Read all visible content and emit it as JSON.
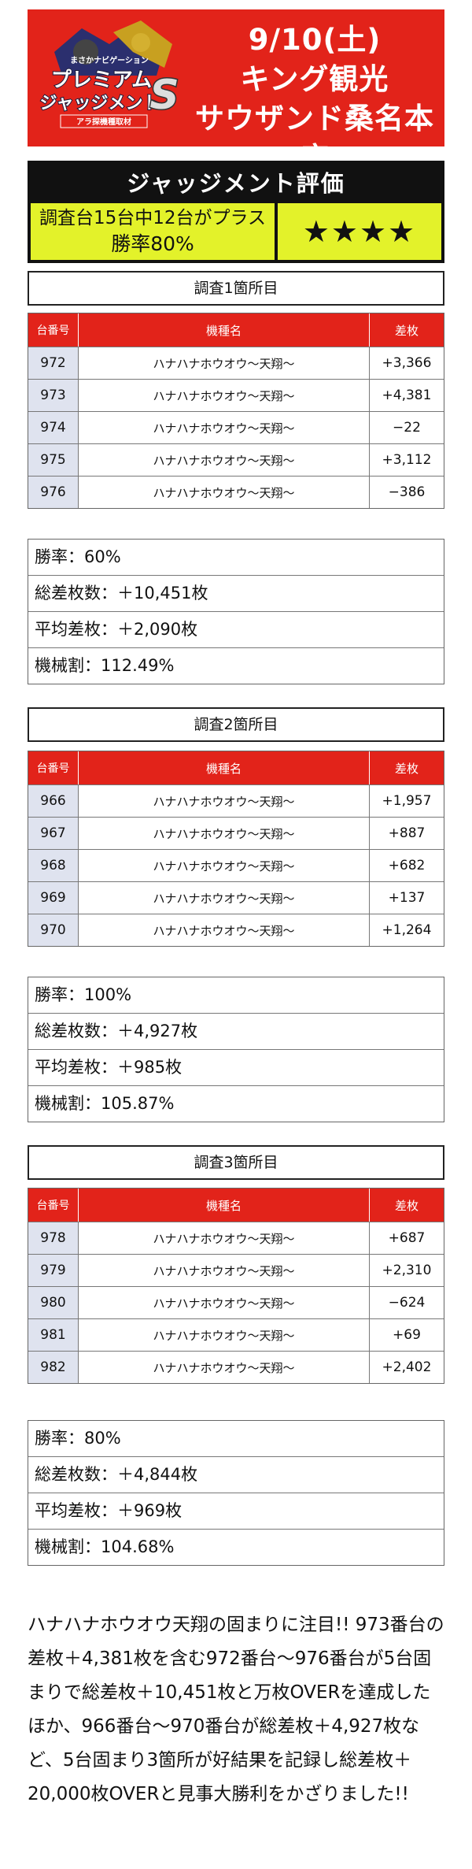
{
  "header": {
    "logo_top": "まさかナビゲーション",
    "logo_line1": "プレミアム",
    "logo_line2": "ジャッジメント",
    "logo_letter": "S",
    "logo_sub": "アラ探機種取材",
    "date": "9/10(土)",
    "store_line1": "キング観光",
    "store_line2": "サウザンド桑名本店"
  },
  "judgement": {
    "title": "ジャッジメント評価",
    "line1": "調査台15台中12台がプラス",
    "line2": "勝率80%",
    "stars": "★★★★"
  },
  "table_headers": {
    "num": "台番号",
    "name": "機種名",
    "diff": "差枚"
  },
  "sections": [
    {
      "title": "調査1箇所目",
      "rows": [
        {
          "num": "972",
          "name": "ハナハナホウオウ〜天翔〜",
          "diff": "+3,366"
        },
        {
          "num": "973",
          "name": "ハナハナホウオウ〜天翔〜",
          "diff": "+4,381"
        },
        {
          "num": "974",
          "name": "ハナハナホウオウ〜天翔〜",
          "diff": "−22"
        },
        {
          "num": "975",
          "name": "ハナハナホウオウ〜天翔〜",
          "diff": "+3,112"
        },
        {
          "num": "976",
          "name": "ハナハナホウオウ〜天翔〜",
          "diff": "−386"
        }
      ],
      "stats": [
        "勝率：60%",
        "総差枚数：＋10,451枚",
        "平均差枚：＋2,090枚",
        "機械割：112.49%"
      ]
    },
    {
      "title": "調査2箇所目",
      "rows": [
        {
          "num": "966",
          "name": "ハナハナホウオウ〜天翔〜",
          "diff": "+1,957"
        },
        {
          "num": "967",
          "name": "ハナハナホウオウ〜天翔〜",
          "diff": "+887"
        },
        {
          "num": "968",
          "name": "ハナハナホウオウ〜天翔〜",
          "diff": "+682"
        },
        {
          "num": "969",
          "name": "ハナハナホウオウ〜天翔〜",
          "diff": "+137"
        },
        {
          "num": "970",
          "name": "ハナハナホウオウ〜天翔〜",
          "diff": "+1,264"
        }
      ],
      "stats": [
        "勝率：100%",
        "総差枚数：＋4,927枚",
        "平均差枚：＋985枚",
        "機械割：105.87%"
      ]
    },
    {
      "title": "調査3箇所目",
      "rows": [
        {
          "num": "978",
          "name": "ハナハナホウオウ〜天翔〜",
          "diff": "+687"
        },
        {
          "num": "979",
          "name": "ハナハナホウオウ〜天翔〜",
          "diff": "+2,310"
        },
        {
          "num": "980",
          "name": "ハナハナホウオウ〜天翔〜",
          "diff": "−624"
        },
        {
          "num": "981",
          "name": "ハナハナホウオウ〜天翔〜",
          "diff": "+69"
        },
        {
          "num": "982",
          "name": "ハナハナホウオウ〜天翔〜",
          "diff": "+2,402"
        }
      ],
      "stats": [
        "勝率：80%",
        "総差枚数：＋4,844枚",
        "平均差枚：＋969枚",
        "機械割：104.68%"
      ]
    }
  ],
  "comment": "ハナハナホウオウ天翔の固まりに注目!! 973番台の差枚＋4,381枚を含む972番台〜976番台が5台固まりで総差枚＋10,451枚と万枚OVERを達成したほか、966番台〜970番台が総差枚＋4,927枚など、5台固まり3箇所が好結果を記録し総差枚＋20,000枚OVERと見事大勝利をかざりました!!"
}
